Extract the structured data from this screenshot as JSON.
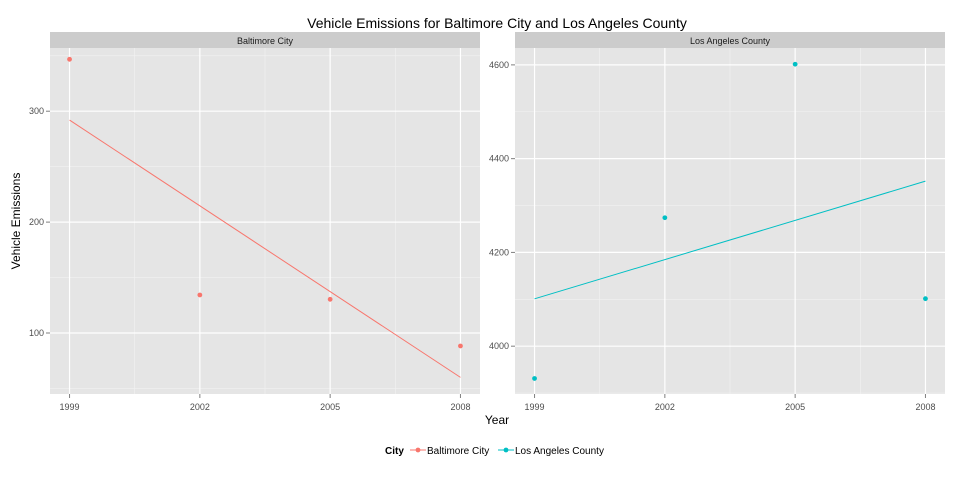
{
  "chart_data": {
    "type": "scatter",
    "title": "Vehicle Emissions for Baltimore City and Los Angeles County",
    "xlabel": "Year",
    "ylabel": "Vehicle Emissions",
    "x_ticks": [
      1999,
      2002,
      2005,
      2008
    ],
    "grid": true,
    "legend": {
      "title": "City",
      "position": "bottom",
      "entries": [
        "Baltimore City",
        "Los Angeles County"
      ]
    },
    "panels": [
      {
        "strip": "Baltimore City",
        "color": "#f8766d",
        "x": [
          1999,
          2002,
          2005,
          2008
        ],
        "y": [
          346.8,
          134.3,
          130.4,
          88.3
        ],
        "trend": {
          "x": [
            1999,
            2008
          ],
          "y": [
            292,
            60
          ]
        },
        "ylim": [
          45,
          357
        ],
        "y_ticks": [
          100,
          200,
          300
        ],
        "xlim": [
          1998.55,
          2008.45
        ]
      },
      {
        "strip": "Los Angeles County",
        "color": "#00bfc4",
        "x": [
          1999,
          2002,
          2005,
          2008
        ],
        "y": [
          3931.1,
          4274.0,
          4601.4,
          4101.3
        ],
        "trend": {
          "x": [
            1999,
            2008
          ],
          "y": [
            4101,
            4352
          ]
        },
        "ylim": [
          3898,
          4636
        ],
        "y_ticks": [
          4000,
          4200,
          4400,
          4600
        ],
        "xlim": [
          1998.55,
          2008.45
        ]
      }
    ]
  }
}
